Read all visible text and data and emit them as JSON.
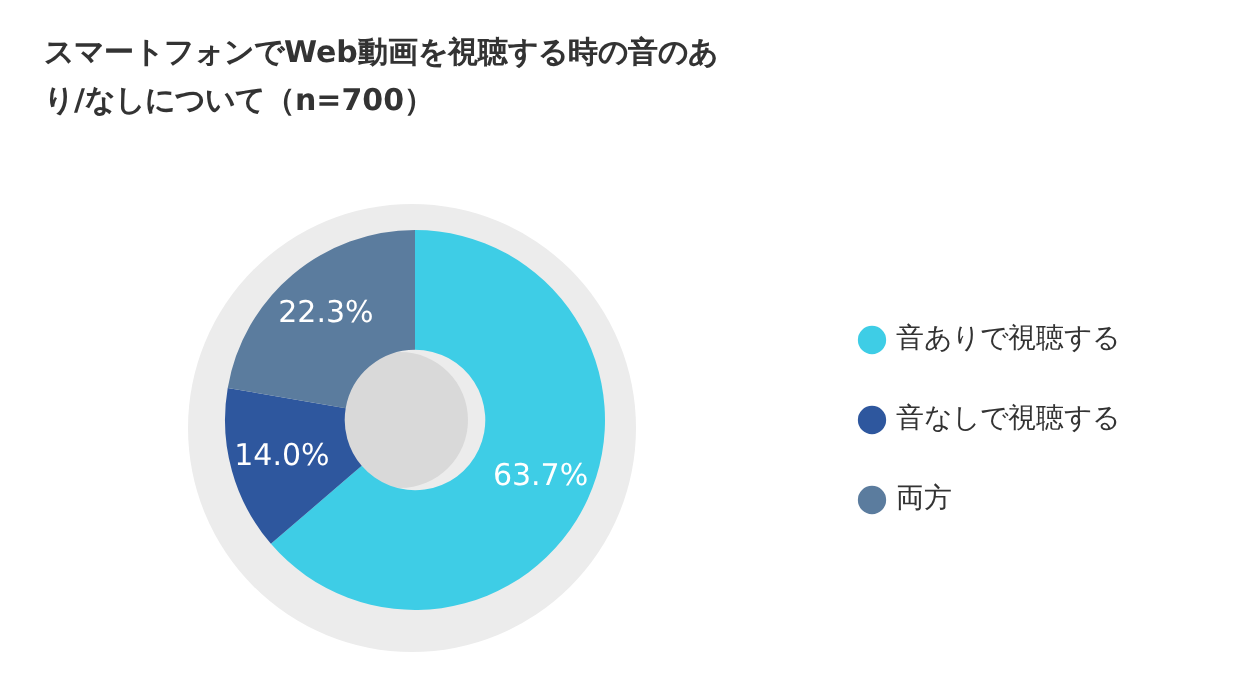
{
  "chart_data": {
    "type": "donut",
    "title": "スマートフォンでWeb動画を視聴する時の音のあり/なしについて（n=700）",
    "categories": [
      "音ありで視聴する",
      "音なしで視聴する",
      "両方"
    ],
    "values": [
      63.7,
      14.0,
      22.3
    ],
    "value_labels": [
      "63.7%",
      "14.0%",
      "22.3%"
    ],
    "colors": [
      "#3ecde6",
      "#2e579e",
      "#5b7c9e"
    ],
    "legend": "right"
  }
}
